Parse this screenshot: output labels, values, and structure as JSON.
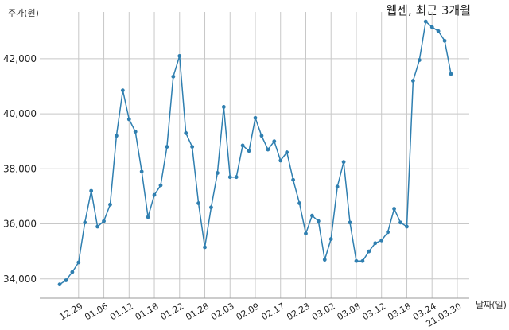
{
  "chart_data": {
    "type": "line",
    "title": "웹젠, 최근 3개월",
    "ylabel": "주가(원)",
    "xlabel": "날짜(일)",
    "ylim": [
      33300,
      43700
    ],
    "yticks": [
      34000,
      36000,
      38000,
      40000,
      42000
    ],
    "ytick_labels": [
      "34,000",
      "36,000",
      "38,000",
      "40,000",
      "42,000"
    ],
    "xtick_labels": [
      "12.29",
      "01.06",
      "01.12",
      "01.18",
      "01.22",
      "01.28",
      "02.03",
      "02.09",
      "02.17",
      "02.23",
      "03.02",
      "03.08",
      "03.12",
      "03.18",
      "03.24",
      "21.03.30"
    ],
    "xtick_index": [
      3,
      7,
      11,
      15,
      19,
      23,
      27,
      31,
      35,
      39,
      43,
      47,
      51,
      55,
      59,
      63
    ],
    "grid": true,
    "series": [
      {
        "color": "#2f7fb0",
        "values": [
          33800,
          33950,
          34250,
          34600,
          36050,
          37200,
          35900,
          36100,
          36700,
          39200,
          40850,
          39800,
          39350,
          37900,
          36250,
          37050,
          37400,
          38800,
          41350,
          42100,
          39300,
          38800,
          36750,
          35150,
          36600,
          37850,
          40250,
          37700,
          37700,
          38850,
          38650,
          39850,
          39200,
          38700,
          39000,
          38300,
          38600,
          37600,
          36750,
          35650,
          36300,
          36100,
          34700,
          35450,
          37350,
          38250,
          36050,
          34650,
          34650,
          35000,
          35300,
          35400,
          35700,
          36550,
          36050,
          35900,
          41200,
          41950,
          43350,
          43150,
          43000,
          42650,
          41450
        ]
      }
    ]
  }
}
